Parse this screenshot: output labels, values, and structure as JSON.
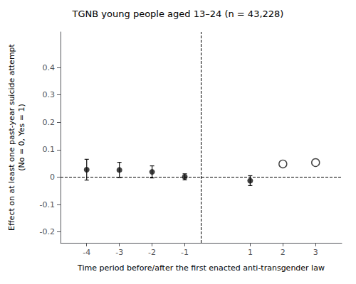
{
  "chart_data": {
    "type": "scatter",
    "title": "TGNB young people aged 13–24 (n = 43,228)",
    "xlabel": "Time period before/after the first enacted anti-transgender law",
    "ylabel": "Effect on at least one past-year suicide attempt\n(No = 0, Yes = 1)",
    "xlim": [
      -4.8,
      3.8
    ],
    "ylim": [
      -0.24,
      0.53
    ],
    "xticks": [
      -4,
      -3,
      -2,
      -1,
      1,
      2,
      3
    ],
    "yticks": [
      -0.2,
      -0.1,
      0,
      0.1,
      0.2,
      0.3,
      0.4
    ],
    "grid": false,
    "series": [
      {
        "x": [
          -4,
          -3,
          -2,
          -1,
          1
        ],
        "values": [
          0.027,
          0.026,
          0.019,
          0.001,
          -0.013
        ],
        "yerr_low": [
          0.038,
          0.028,
          0.022,
          0.011,
          0.018
        ],
        "yerr_high": [
          0.038,
          0.028,
          0.022,
          0.011,
          0.018
        ],
        "color": "#111111",
        "marker": "filled"
      },
      {
        "x": [
          2,
          3
        ],
        "values": [
          0.048,
          0.053
        ],
        "color": "#111111",
        "marker": "open"
      }
    ],
    "reference_lines": [
      {
        "axis": "y",
        "value": 0.0,
        "line_style": "dashed"
      },
      {
        "axis": "x",
        "value": -0.5,
        "line_style": "dashed"
      }
    ]
  }
}
